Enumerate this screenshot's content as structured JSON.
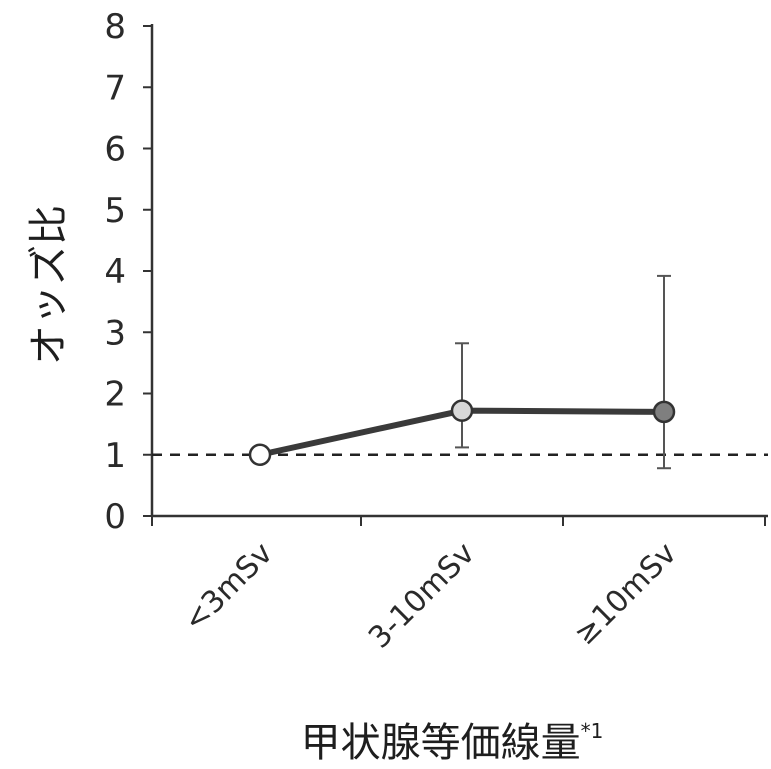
{
  "chart_data": {
    "type": "line",
    "categories": [
      "<3mSv",
      "3-10mSv",
      "≥10mSv"
    ],
    "series": [
      {
        "values": [
          1.0,
          1.72,
          1.7
        ],
        "error_low": [
          1.0,
          1.12,
          0.78
        ],
        "error_high": [
          1.0,
          2.82,
          3.92
        ],
        "marker_fills": [
          "#ffffff",
          "#d8d8d8",
          "#7f7f7f"
        ]
      }
    ],
    "reference_line": 1,
    "ylabel": "オッズ比",
    "xlabel": "甲状腺等価線量",
    "xlabel_superscript": "*1",
    "ylim": [
      0,
      8
    ],
    "yticks": [
      "0",
      "1",
      "2",
      "3",
      "4",
      "5",
      "6",
      "7",
      "8"
    ],
    "grid": false,
    "line_color": "#3a3a3a"
  }
}
